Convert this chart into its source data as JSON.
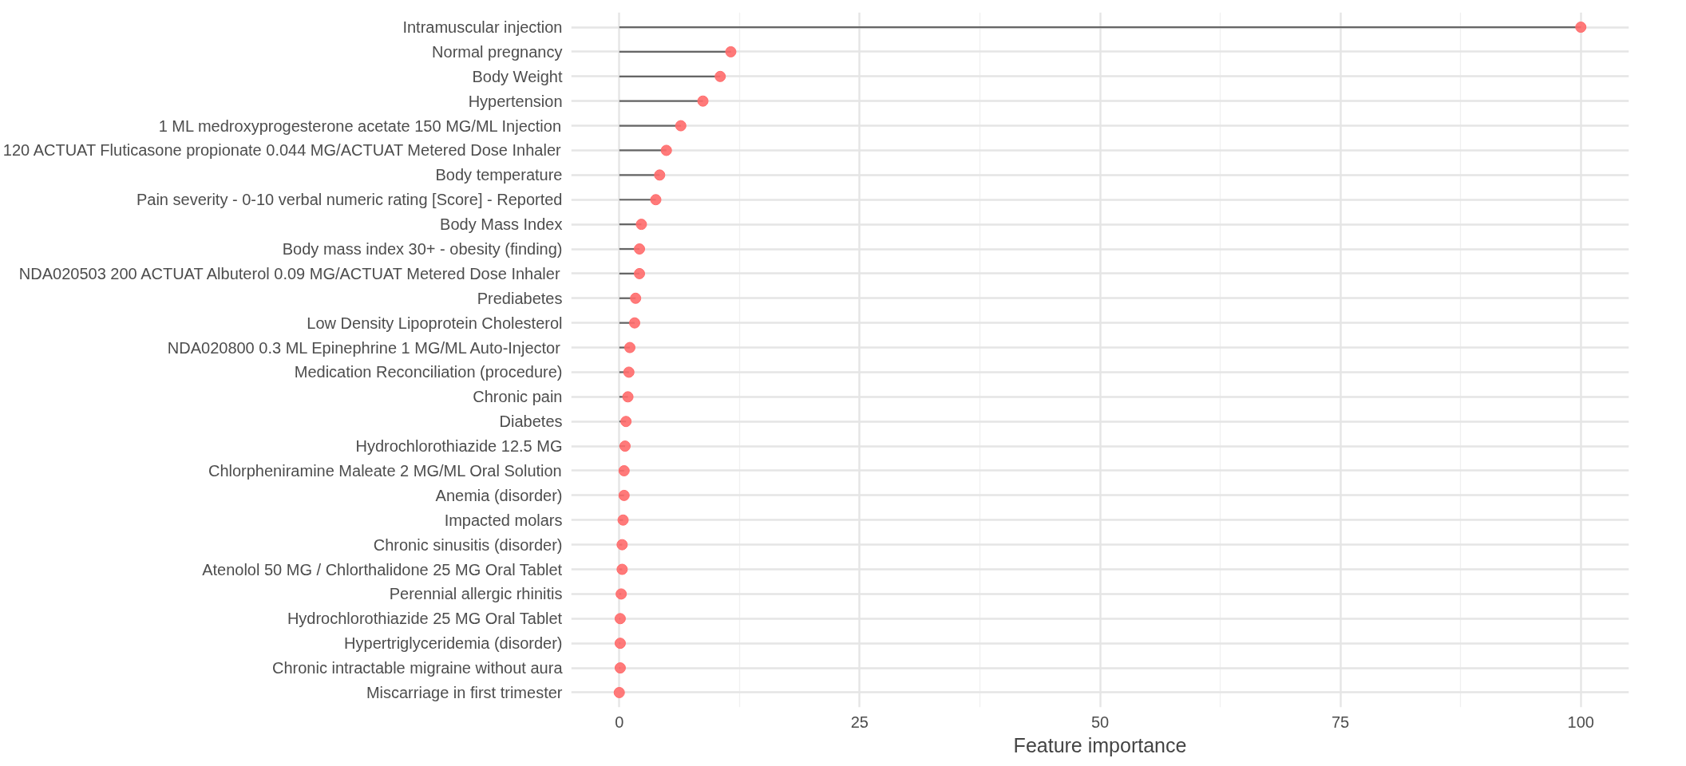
{
  "chart_data": {
    "type": "lollipop",
    "orientation": "horizontal",
    "xlabel": "Feature importance",
    "categories": [
      "Intramuscular injection",
      "Normal pregnancy",
      "Body Weight",
      "Hypertension",
      "1 ML medroxyprogesterone acetate 150 MG/ML Injection",
      "120 ACTUAT Fluticasone propionate 0.044 MG/ACTUAT Metered Dose Inhaler",
      "Body temperature",
      "Pain severity - 0-10 verbal numeric rating [Score] - Reported",
      "Body Mass Index",
      "Body mass index 30+ - obesity (finding)",
      "NDA020503 200 ACTUAT Albuterol 0.09 MG/ACTUAT Metered Dose Inhaler",
      "Prediabetes",
      "Low Density Lipoprotein Cholesterol",
      "NDA020800 0.3 ML Epinephrine 1 MG/ML Auto-Injector",
      "Medication Reconciliation (procedure)",
      "Chronic pain",
      "Diabetes",
      "Hydrochlorothiazide 12.5 MG",
      "Chlorpheniramine Maleate 2 MG/ML Oral Solution",
      "Anemia (disorder)",
      "Impacted molars",
      "Chronic sinusitis (disorder)",
      "Atenolol 50 MG / Chlorthalidone 25 MG Oral Tablet",
      "Perennial allergic rhinitis",
      "Hydrochlorothiazide 25 MG Oral Tablet",
      "Hypertriglyceridemia (disorder)",
      "Chronic intractable migraine without aura",
      "Miscarriage in first trimester"
    ],
    "values": [
      100,
      11.6,
      10.5,
      8.7,
      6.4,
      4.9,
      4.2,
      3.8,
      2.3,
      2.1,
      2.1,
      1.7,
      1.6,
      1.1,
      1.0,
      0.9,
      0.7,
      0.6,
      0.5,
      0.5,
      0.4,
      0.3,
      0.3,
      0.2,
      0.1,
      0.1,
      0.1,
      0
    ],
    "color": "#ff6b6b",
    "marker": "circle",
    "grid": true,
    "xlim": [
      -5,
      105
    ],
    "xticks": [
      0,
      25,
      50,
      75,
      100
    ]
  }
}
